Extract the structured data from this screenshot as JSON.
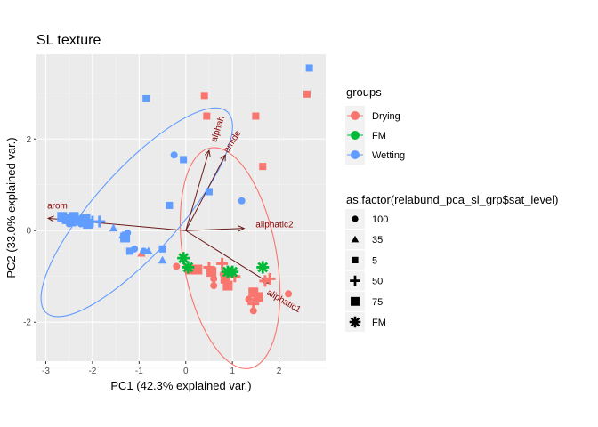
{
  "chart_data": {
    "type": "scatter",
    "title": "SL texture",
    "xlabel": "PC1 (42.3% explained var.)",
    "ylabel": "PC2 (33.0% explained var.)",
    "xlim": [
      -3.2,
      3.0
    ],
    "ylim": [
      -2.85,
      3.85
    ],
    "x_ticks": [
      -3,
      -2,
      -1,
      0,
      1,
      2
    ],
    "y_ticks": [
      -2,
      0,
      2
    ],
    "grid": true,
    "legend_position": "right",
    "colors": {
      "Drying": "#F8766D",
      "FM": "#00BA38",
      "Wetting": "#619CFF",
      "arrow": "#6B1A1A"
    },
    "legends": [
      {
        "title": "groups",
        "entries": [
          "Drying",
          "FM",
          "Wetting"
        ]
      },
      {
        "title": "as.factor(relabund_pca_sl_grp$sat_level)",
        "entries": [
          "100",
          "35",
          "5",
          "50",
          "75",
          "FM"
        ],
        "shapes": [
          "circle",
          "triangle",
          "square-small",
          "plus",
          "square",
          "asterisk"
        ]
      }
    ],
    "series": [
      {
        "name": "Drying",
        "points": [
          {
            "x": 0.4,
            "y": 2.95,
            "shape": "5"
          },
          {
            "x": 0.45,
            "y": 2.5,
            "shape": "5"
          },
          {
            "x": 1.5,
            "y": 2.5,
            "shape": "5"
          },
          {
            "x": 2.6,
            "y": 2.98,
            "shape": "5"
          },
          {
            "x": 1.65,
            "y": 1.4,
            "shape": "5"
          },
          {
            "x": -0.95,
            "y": -0.5,
            "shape": "35"
          },
          {
            "x": -0.2,
            "y": -0.78,
            "shape": "100"
          },
          {
            "x": 0.1,
            "y": -0.85,
            "shape": "75"
          },
          {
            "x": 0.25,
            "y": -0.85,
            "shape": "75"
          },
          {
            "x": 0.5,
            "y": -0.8,
            "shape": "50"
          },
          {
            "x": 0.55,
            "y": -0.9,
            "shape": "75"
          },
          {
            "x": 0.78,
            "y": -0.72,
            "shape": "50"
          },
          {
            "x": 0.8,
            "y": -0.95,
            "shape": "100"
          },
          {
            "x": 0.6,
            "y": -1.05,
            "shape": "100"
          },
          {
            "x": 0.85,
            "y": -1.05,
            "shape": "75"
          },
          {
            "x": 1.05,
            "y": -1.0,
            "shape": "50"
          },
          {
            "x": 0.9,
            "y": -1.2,
            "shape": "75"
          },
          {
            "x": 0.6,
            "y": -1.2,
            "shape": "100"
          },
          {
            "x": 1.45,
            "y": -1.35,
            "shape": "75"
          },
          {
            "x": 1.55,
            "y": -1.45,
            "shape": "75"
          },
          {
            "x": 1.35,
            "y": -1.5,
            "shape": "100"
          },
          {
            "x": 1.45,
            "y": -1.6,
            "shape": "50"
          },
          {
            "x": 1.45,
            "y": -1.75,
            "shape": "100"
          },
          {
            "x": 1.7,
            "y": -1.1,
            "shape": "50"
          },
          {
            "x": 1.8,
            "y": -1.05,
            "shape": "50"
          },
          {
            "x": 2.2,
            "y": -1.38,
            "shape": "100"
          }
        ]
      },
      {
        "name": "FM",
        "points": [
          {
            "x": -0.05,
            "y": -0.6,
            "shape": "FM"
          },
          {
            "x": 0.05,
            "y": -0.8,
            "shape": "FM"
          },
          {
            "x": 0.9,
            "y": -0.9,
            "shape": "FM"
          },
          {
            "x": 1.0,
            "y": -0.9,
            "shape": "FM"
          },
          {
            "x": 1.65,
            "y": -0.8,
            "shape": "FM"
          }
        ]
      },
      {
        "name": "Wetting",
        "points": [
          {
            "x": -0.85,
            "y": 2.88,
            "shape": "5"
          },
          {
            "x": 2.65,
            "y": 3.55,
            "shape": "5"
          },
          {
            "x": -0.25,
            "y": 1.65,
            "shape": "100"
          },
          {
            "x": -0.05,
            "y": 1.55,
            "shape": "5"
          },
          {
            "x": 0.5,
            "y": 0.85,
            "shape": "5"
          },
          {
            "x": -0.35,
            "y": 0.55,
            "shape": "5"
          },
          {
            "x": 1.2,
            "y": 0.65,
            "shape": "100"
          },
          {
            "x": -2.65,
            "y": 0.3,
            "shape": "75"
          },
          {
            "x": -2.55,
            "y": 0.25,
            "shape": "75"
          },
          {
            "x": -2.45,
            "y": 0.2,
            "shape": "75"
          },
          {
            "x": -2.4,
            "y": 0.3,
            "shape": "75"
          },
          {
            "x": -2.3,
            "y": 0.22,
            "shape": "75"
          },
          {
            "x": -2.15,
            "y": 0.25,
            "shape": "75"
          },
          {
            "x": -2.1,
            "y": 0.15,
            "shape": "75"
          },
          {
            "x": -2.5,
            "y": 0.15,
            "shape": "100"
          },
          {
            "x": -2.25,
            "y": 0.15,
            "shape": "100"
          },
          {
            "x": -2.0,
            "y": 0.2,
            "shape": "50"
          },
          {
            "x": -1.85,
            "y": 0.2,
            "shape": "50"
          },
          {
            "x": -1.55,
            "y": 0.05,
            "shape": "35"
          },
          {
            "x": -1.35,
            "y": -0.1,
            "shape": "35"
          },
          {
            "x": -1.3,
            "y": -0.15,
            "shape": "75"
          },
          {
            "x": -1.25,
            "y": -0.05,
            "shape": "100"
          },
          {
            "x": -1.2,
            "y": -0.45,
            "shape": "5"
          },
          {
            "x": -1.1,
            "y": -0.4,
            "shape": "100"
          },
          {
            "x": -0.9,
            "y": -0.45,
            "shape": "100"
          },
          {
            "x": -0.8,
            "y": -0.45,
            "shape": "35"
          },
          {
            "x": -0.5,
            "y": -0.4,
            "shape": "5"
          },
          {
            "x": -0.5,
            "y": -0.65,
            "shape": "35"
          }
        ]
      }
    ],
    "ellipses": [
      {
        "group": "Drying",
        "cx": 0.95,
        "cy": -0.6,
        "rx": 2.4,
        "ry": 1.0,
        "angle_deg": -80
      },
      {
        "group": "Wetting",
        "cx": -1.05,
        "cy": 0.4,
        "rx": 2.9,
        "ry": 0.9,
        "angle_deg": 48
      }
    ],
    "arrows": [
      {
        "label": "arom",
        "x": -2.95,
        "y": 0.27
      },
      {
        "label": "alphah",
        "x": 0.5,
        "y": 1.75
      },
      {
        "label": "amide",
        "x": 0.85,
        "y": 1.65
      },
      {
        "label": "aliphatic2",
        "x": 1.25,
        "y": 0.05
      },
      {
        "label": "aliphatic1",
        "x": 1.8,
        "y": -1.15
      }
    ]
  }
}
